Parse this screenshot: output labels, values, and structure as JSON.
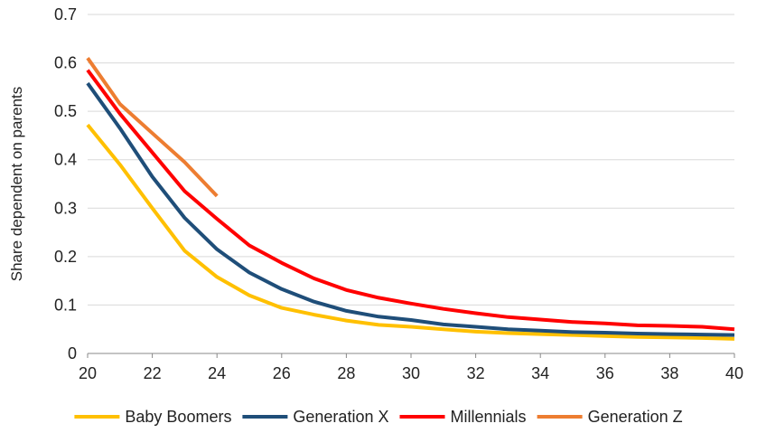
{
  "chart_data": {
    "type": "line",
    "ylabel": "Share dependent on parents",
    "xlabel": "",
    "xlim": [
      20,
      40
    ],
    "ylim": [
      0,
      0.7
    ],
    "x_ticks": [
      "20",
      "22",
      "24",
      "26",
      "28",
      "30",
      "32",
      "34",
      "36",
      "38",
      "40"
    ],
    "y_ticks": [
      "0",
      "0.1",
      "0.2",
      "0.3",
      "0.4",
      "0.5",
      "0.6",
      "0.7"
    ],
    "grid": true,
    "legend_position": "bottom",
    "series": [
      {
        "name": "Baby Boomers",
        "color": "#FFC000",
        "x": [
          20,
          21,
          22,
          23,
          24,
          25,
          26,
          27,
          28,
          29,
          30,
          31,
          32,
          33,
          34,
          35,
          36,
          37,
          38,
          39,
          40
        ],
        "values": [
          0.472,
          0.39,
          0.3,
          0.212,
          0.158,
          0.12,
          0.094,
          0.08,
          0.068,
          0.059,
          0.055,
          0.05,
          0.045,
          0.042,
          0.04,
          0.038,
          0.036,
          0.034,
          0.033,
          0.032,
          0.03
        ]
      },
      {
        "name": "Generation X",
        "color": "#1F4E79",
        "x": [
          20,
          21,
          22,
          23,
          24,
          25,
          26,
          27,
          28,
          29,
          30,
          31,
          32,
          33,
          34,
          35,
          36,
          37,
          38,
          39,
          40
        ],
        "values": [
          0.558,
          0.465,
          0.365,
          0.28,
          0.215,
          0.167,
          0.133,
          0.107,
          0.088,
          0.076,
          0.069,
          0.06,
          0.055,
          0.05,
          0.047,
          0.044,
          0.043,
          0.041,
          0.04,
          0.039,
          0.038
        ]
      },
      {
        "name": "Millennials",
        "color": "#FF0000",
        "x": [
          20,
          21,
          22,
          23,
          24,
          25,
          26,
          27,
          28,
          29,
          30,
          31,
          32,
          33,
          34,
          35,
          36,
          37,
          38,
          39,
          40
        ],
        "values": [
          0.585,
          0.495,
          0.415,
          0.335,
          0.278,
          0.223,
          0.187,
          0.155,
          0.131,
          0.115,
          0.103,
          0.092,
          0.083,
          0.075,
          0.07,
          0.065,
          0.062,
          0.058,
          0.057,
          0.055,
          0.05
        ]
      },
      {
        "name": "Generation Z",
        "color": "#ED7D31",
        "x": [
          20,
          21,
          22,
          23,
          24
        ],
        "values": [
          0.61,
          0.515,
          0.455,
          0.395,
          0.325
        ]
      }
    ]
  }
}
